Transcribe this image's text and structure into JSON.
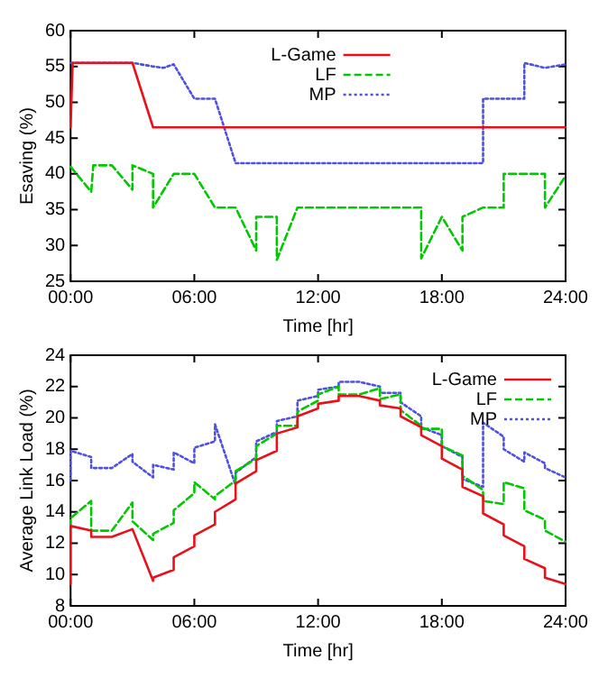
{
  "chart_data": [
    {
      "type": "line",
      "xlabel": "Time [hr]",
      "ylabel": "Esaving (%)",
      "xlim": [
        0,
        24
      ],
      "xticks": [
        {
          "value": 0,
          "label": "00:00"
        },
        {
          "value": 6,
          "label": "06:00"
        },
        {
          "value": 12,
          "label": "12:00"
        },
        {
          "value": 18,
          "label": "18:00"
        },
        {
          "value": 24,
          "label": "24:00"
        }
      ],
      "ylim": [
        25,
        60
      ],
      "yticks": [
        25,
        30,
        35,
        40,
        45,
        50,
        55,
        60
      ],
      "grid": false,
      "legend": "top",
      "marker": "none",
      "series": [
        {
          "name": "L-Game",
          "color": "#e8101a",
          "line_style": "solid",
          "x": [
            0,
            0.1,
            3,
            4,
            24
          ],
          "values": [
            46.5,
            55.5,
            55.5,
            46.5,
            46.5
          ]
        },
        {
          "name": "LF",
          "color": "#00c800",
          "line_style": "dashed",
          "x": [
            0,
            1,
            1.1,
            2,
            3,
            3,
            4,
            4,
            5,
            6,
            7,
            8,
            9,
            9,
            10,
            10,
            11,
            17,
            17,
            18,
            19,
            19,
            20,
            21,
            21,
            23,
            23,
            24
          ],
          "values": [
            41,
            37.5,
            41.2,
            41.2,
            37.8,
            41.2,
            40,
            35.3,
            40,
            40,
            35.3,
            35.3,
            29.3,
            34,
            34,
            28,
            35.3,
            35.3,
            28.2,
            34,
            29.3,
            34,
            35.3,
            35.3,
            40,
            40,
            35.3,
            39.7
          ]
        },
        {
          "name": "MP",
          "color": "#5050e0",
          "line_style": "dotted",
          "x": [
            0,
            3,
            4,
            4.5,
            5,
            6,
            7,
            8,
            20,
            20,
            22,
            22,
            23,
            24
          ],
          "values": [
            55.5,
            55.5,
            55,
            54.8,
            55.3,
            50.5,
            50.5,
            41.5,
            41.5,
            50.5,
            50.5,
            55.5,
            54.8,
            55.3
          ]
        }
      ]
    },
    {
      "type": "line",
      "xlabel": "Time [hr]",
      "ylabel": "Average Link Load (%)",
      "xlim": [
        0,
        24
      ],
      "xticks": [
        {
          "value": 0,
          "label": "00:00"
        },
        {
          "value": 6,
          "label": "06:00"
        },
        {
          "value": 12,
          "label": "12:00"
        },
        {
          "value": 18,
          "label": "18:00"
        },
        {
          "value": 24,
          "label": "24:00"
        }
      ],
      "ylim": [
        8,
        24
      ],
      "yticks": [
        8,
        10,
        12,
        14,
        16,
        18,
        20,
        22,
        24
      ],
      "grid": false,
      "legend": "top right",
      "marker": "none",
      "series": [
        {
          "name": "L-Game",
          "color": "#e8101a",
          "line_style": "solid",
          "x": [
            0,
            0,
            1,
            1,
            2,
            3,
            4,
            4,
            5,
            5,
            6,
            6,
            7,
            7,
            8,
            8,
            9,
            9,
            10,
            10,
            11,
            11,
            12,
            12,
            13,
            13,
            14,
            15,
            15,
            16,
            16,
            17,
            17,
            18,
            18,
            19,
            19,
            20,
            20,
            21,
            21,
            22,
            22,
            23,
            23,
            24
          ],
          "values": [
            9.4,
            13.1,
            12.8,
            12.4,
            12.4,
            12.9,
            9.6,
            9.8,
            10.3,
            11.1,
            11.8,
            12.5,
            13.2,
            14,
            14.8,
            15.8,
            16.6,
            17.3,
            17.9,
            19,
            19.4,
            20.1,
            20.6,
            20.9,
            21.1,
            21.4,
            21.4,
            21.1,
            20.8,
            20.6,
            20.1,
            19.4,
            18.9,
            18.2,
            17.4,
            16.7,
            15.6,
            15,
            13.9,
            13.2,
            12.5,
            11.8,
            11,
            10.4,
            9.8,
            9.4
          ]
        },
        {
          "name": "LF",
          "color": "#00c800",
          "line_style": "dashed",
          "x": [
            0,
            0,
            1,
            1,
            2,
            3,
            3,
            4,
            4,
            5,
            5,
            6,
            6,
            7,
            7,
            8,
            8,
            9,
            9,
            10,
            10,
            11,
            11,
            12,
            12,
            13,
            13,
            14,
            15,
            15,
            16,
            16,
            17,
            17,
            18,
            18,
            19,
            19,
            20,
            20,
            21,
            21,
            22,
            22,
            23,
            23,
            24
          ],
          "values": [
            13,
            13.6,
            14.7,
            12.8,
            12.8,
            14.6,
            13.4,
            12.2,
            12.6,
            13.3,
            14.1,
            15.2,
            15.9,
            14.8,
            15,
            16,
            16.6,
            17.4,
            18.2,
            19,
            19.5,
            19.5,
            20.4,
            21.1,
            21.5,
            22,
            21.5,
            21.5,
            21.9,
            21.2,
            21.5,
            20.5,
            19.5,
            19.3,
            19.3,
            18.2,
            17.6,
            16.3,
            15.4,
            14.7,
            14.5,
            15.9,
            15.5,
            14.1,
            13.5,
            12.8,
            12.1
          ]
        },
        {
          "name": "MP",
          "color": "#5050e0",
          "line_style": "dotted",
          "x": [
            0,
            0,
            1,
            1,
            2,
            3,
            3,
            4,
            4,
            5,
            5,
            6,
            6,
            7,
            7,
            8,
            8,
            9,
            9,
            10,
            10,
            11,
            11,
            12,
            12,
            13,
            13,
            14,
            15,
            15,
            16,
            16,
            17,
            17,
            18,
            18,
            19,
            19,
            20,
            20,
            21,
            21,
            22,
            22,
            23,
            23,
            24
          ],
          "values": [
            16,
            17.9,
            17.5,
            16.8,
            16.8,
            17.7,
            17.2,
            16.2,
            17,
            16.7,
            17.8,
            17.1,
            18.1,
            18.5,
            19.6,
            15.7,
            16.5,
            17.5,
            18.5,
            19.1,
            19.8,
            20.1,
            21.1,
            21.4,
            21.8,
            22,
            22.3,
            22.3,
            22,
            21.6,
            21.6,
            21,
            20.1,
            19.4,
            18.9,
            18.2,
            17.5,
            16.1,
            15.6,
            19.7,
            18.8,
            18,
            17.2,
            17.8,
            17.1,
            16.8,
            16.2
          ]
        }
      ]
    }
  ]
}
